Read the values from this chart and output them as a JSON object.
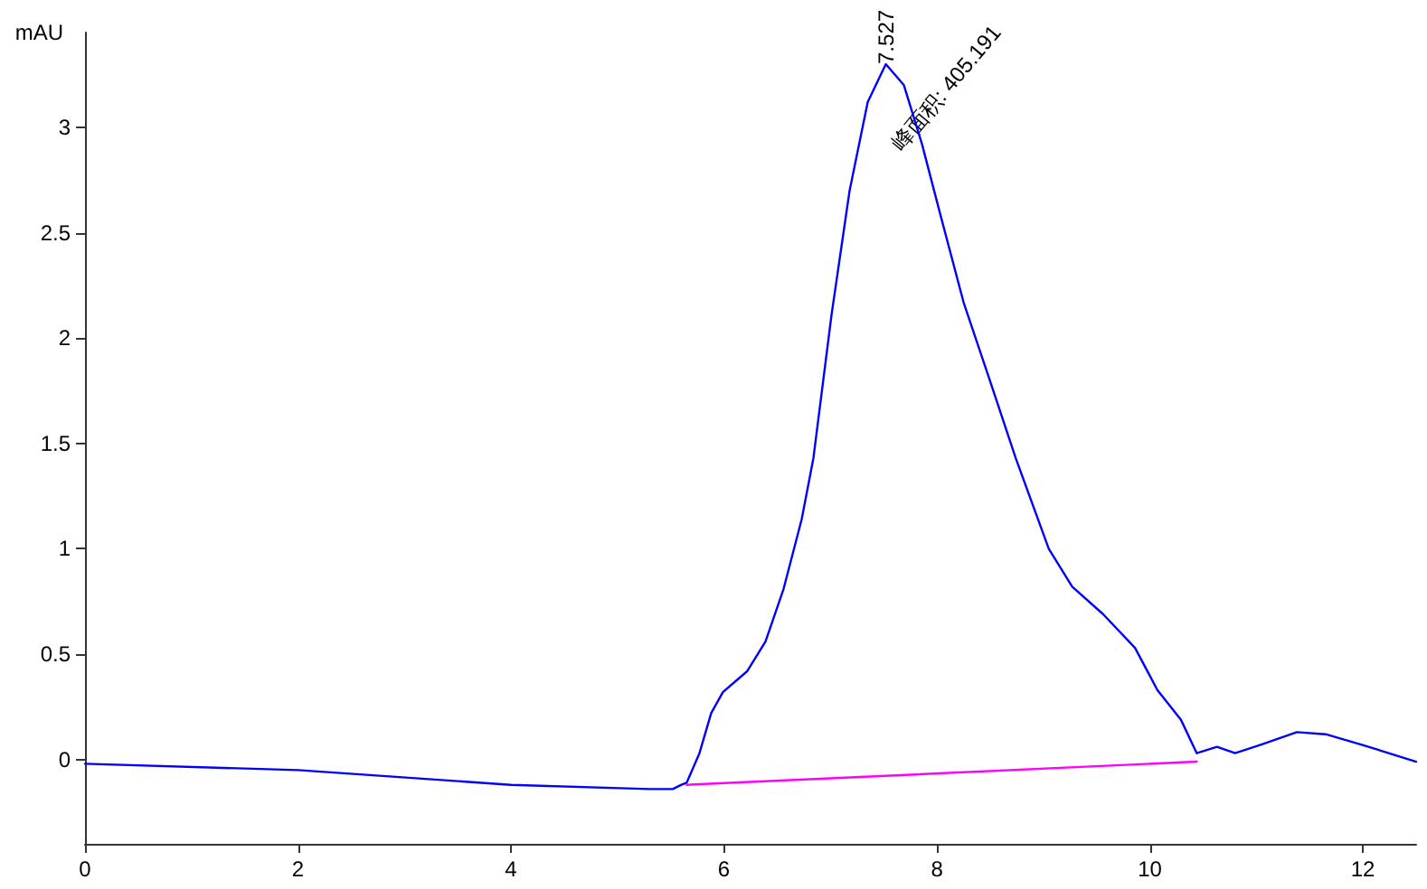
{
  "chart_data": {
    "type": "line",
    "ylabel": "mAU",
    "xlim": [
      0,
      12.5
    ],
    "xticks": [
      0,
      2,
      4,
      6,
      8,
      10,
      12
    ],
    "ylim": [
      -0.4,
      3.45
    ],
    "yticks": [
      0,
      0.5,
      1,
      1.5,
      2,
      2.5,
      3
    ],
    "grid": false,
    "marker": "none",
    "line_style": "solid",
    "series": [
      {
        "color": "#0000ff",
        "x": [
          0,
          2,
          4,
          5.3,
          5.52,
          5.6,
          5.65,
          5.77,
          5.88,
          5.99,
          6.22,
          6.39,
          6.56,
          6.73,
          6.84,
          7.01,
          7.18,
          7.35,
          7.52,
          7.69,
          7.86,
          8.03,
          8.25,
          8.49,
          8.74,
          9.05,
          9.27,
          9.56,
          9.86,
          10.07,
          10.29,
          10.44,
          10.63,
          10.8,
          11.04,
          11.38,
          11.65,
          11.99,
          12.5
        ],
        "values": [
          -0.02,
          -0.05,
          -0.12,
          -0.14,
          -0.14,
          -0.12,
          -0.11,
          0.03,
          0.22,
          0.32,
          0.42,
          0.56,
          0.81,
          1.14,
          1.43,
          2.11,
          2.7,
          3.12,
          3.3,
          3.2,
          2.92,
          2.59,
          2.17,
          1.81,
          1.43,
          1.0,
          0.82,
          0.69,
          0.53,
          0.33,
          0.19,
          0.03,
          0.06,
          0.03,
          0.07,
          0.13,
          0.12,
          0.07,
          -0.01
        ]
      },
      {
        "color": "#ff00ff",
        "x": [
          5.65,
          10.44
        ],
        "values": [
          -0.12,
          -0.01
        ]
      }
    ],
    "annotations": [
      {
        "text": "7.527",
        "x": 7.527,
        "y": 3.3
      },
      "峰面积: 405.191"
    ]
  }
}
